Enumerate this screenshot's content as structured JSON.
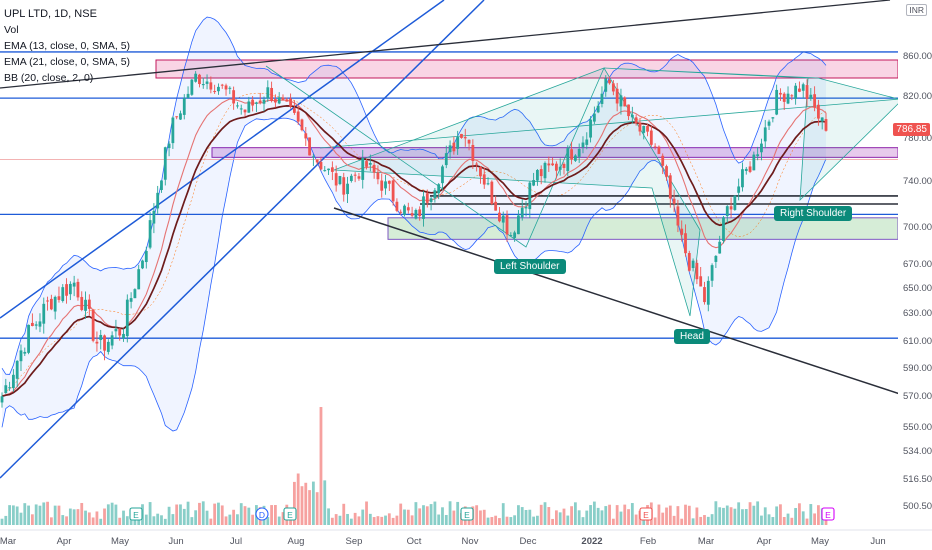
{
  "legend": {
    "title": "UPL LTD, 1D, NSE",
    "vol": "Vol",
    "ema13": "EMA (13, close, 0, SMA, 5)",
    "ema21": "EMA (21, close, 0, SMA, 5)",
    "bb": "BB (20, close, 2, 0)"
  },
  "currency": "INR",
  "last_price": "786.85",
  "annotations": {
    "left_shoulder": "Left Shoulder",
    "head": "Head",
    "right_shoulder": "Right Shoulder"
  },
  "colors": {
    "up": "#26a69a",
    "down": "#ef5350",
    "ema_fast": "#e57373",
    "ema_slow": "#6d1b1b",
    "bb": "#2962ff",
    "trend_blue": "#1e5bd8",
    "trend_black": "#2a2e39",
    "badge": "#0b8a7a"
  },
  "chart_data": {
    "type": "candlestick",
    "y_axis_ticks": [
      860,
      820,
      780,
      740,
      700,
      670,
      650,
      630,
      610,
      590,
      570,
      550,
      534,
      516.5,
      500.5
    ],
    "x_axis_ticks": [
      "Mar",
      "Apr",
      "May",
      "Jun",
      "Jul",
      "Aug",
      "Sep",
      "Oct",
      "Nov",
      "Dec",
      "2022",
      "Feb",
      "Mar",
      "Apr",
      "May",
      "Jun"
    ],
    "horizontal_levels": [
      864,
      818,
      711,
      720,
      727,
      760,
      612
    ],
    "zones": [
      {
        "name": "resistance",
        "from": 838,
        "to": 856
      },
      {
        "name": "neckline",
        "from": 762,
        "to": 771
      },
      {
        "name": "support",
        "from": 690,
        "to": 708
      }
    ],
    "events": [
      {
        "label": "E",
        "month": "May"
      },
      {
        "label": "D",
        "month": "Jul"
      },
      {
        "label": "E",
        "month": "Jul"
      },
      {
        "label": "E",
        "month": "Nov"
      },
      {
        "label": "E",
        "month": "Feb"
      },
      {
        "label": "E",
        "month": "May"
      }
    ],
    "price_path": [
      {
        "month": "Mar",
        "close": 570
      },
      {
        "month": "Mar",
        "close": 612
      },
      {
        "month": "Apr",
        "close": 640
      },
      {
        "month": "Apr",
        "close": 655
      },
      {
        "month": "May",
        "close": 605
      },
      {
        "month": "May",
        "close": 620
      },
      {
        "month": "May",
        "close": 690
      },
      {
        "month": "May",
        "close": 790
      },
      {
        "month": "Jun",
        "close": 840
      },
      {
        "month": "Jun",
        "close": 830
      },
      {
        "month": "Jul",
        "close": 805
      },
      {
        "month": "Jul",
        "close": 825
      },
      {
        "month": "Aug",
        "close": 800
      },
      {
        "month": "Aug",
        "close": 760
      },
      {
        "month": "Sep",
        "close": 735
      },
      {
        "month": "Sep",
        "close": 755
      },
      {
        "month": "Oct",
        "close": 730
      },
      {
        "month": "Oct",
        "close": 705
      },
      {
        "month": "Nov",
        "close": 745
      },
      {
        "month": "Nov",
        "close": 790
      },
      {
        "month": "Nov",
        "close": 735
      },
      {
        "month": "Dec",
        "close": 695
      },
      {
        "month": "Dec",
        "close": 745
      },
      {
        "month": "2022",
        "close": 755
      },
      {
        "month": "2022",
        "close": 780
      },
      {
        "month": "Feb",
        "close": 835
      },
      {
        "month": "Feb",
        "close": 795
      },
      {
        "month": "Feb",
        "close": 770
      },
      {
        "month": "Mar",
        "close": 690
      },
      {
        "month": "Mar",
        "close": 640
      },
      {
        "month": "Mar",
        "close": 720
      },
      {
        "month": "Apr",
        "close": 760
      },
      {
        "month": "Apr",
        "close": 820
      },
      {
        "month": "May",
        "close": 830
      },
      {
        "month": "May",
        "close": 786.85
      }
    ]
  }
}
